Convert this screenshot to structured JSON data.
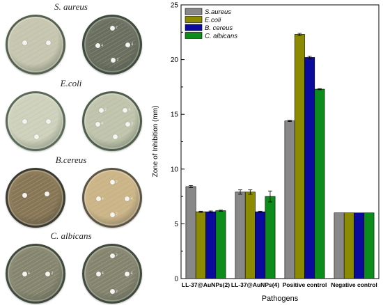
{
  "photos": {
    "rows": [
      {
        "label": "S. aureus",
        "italic": true,
        "plates": [
          {
            "base": "#c8c8b2",
            "rim": "#55604e",
            "dark": false,
            "discs": [
              [
                0.3,
                0.47
              ],
              [
                0.73,
                0.47
              ]
            ],
            "numbers": []
          },
          {
            "base": "#6f7464",
            "rim": "#3e4a3c",
            "dark": true,
            "discs": [
              [
                0.5,
                0.2
              ],
              [
                0.24,
                0.52
              ],
              [
                0.78,
                0.5
              ],
              [
                0.52,
                0.78
              ]
            ],
            "numbers": [
              "2",
              "4",
              "4",
              "2"
            ]
          }
        ]
      },
      {
        "label": "E.coli",
        "italic": true,
        "plates": [
          {
            "base": "#cfd2bc",
            "rim": "#5b6a58",
            "dark": false,
            "discs": [
              [
                0.3,
                0.5
              ],
              [
                0.73,
                0.5
              ],
              [
                0.52,
                0.78
              ]
            ],
            "numbers": []
          },
          {
            "base": "#c2c6ae",
            "rim": "#4f5e4c",
            "dark": false,
            "discs": [
              [
                0.3,
                0.3
              ],
              [
                0.73,
                0.3
              ],
              [
                0.24,
                0.55
              ],
              [
                0.78,
                0.55
              ],
              [
                0.55,
                0.78
              ]
            ],
            "numbers": [
              "2",
              "4",
              "4",
              "2"
            ]
          }
        ]
      },
      {
        "label": "B.cereus",
        "italic": true,
        "plates": [
          {
            "base": "#8e7c5a",
            "rim": "#3a3a30",
            "dark": true,
            "discs": [
              [
                0.3,
                0.46
              ],
              [
                0.7,
                0.43
              ]
            ],
            "numbers": []
          },
          {
            "base": "#cdb78a",
            "rim": "#5b5444",
            "dark": false,
            "discs": [
              [
                0.5,
                0.22
              ],
              [
                0.25,
                0.52
              ],
              [
                0.77,
                0.52
              ],
              [
                0.5,
                0.8
              ]
            ],
            "numbers": [
              "2",
              "4",
              "4",
              "2"
            ]
          }
        ]
      },
      {
        "label": "C. albicans",
        "italic": true,
        "plates": [
          {
            "base": "#8c8b74",
            "rim": "#3f4a3c",
            "dark": true,
            "discs": [
              [
                0.3,
                0.5
              ],
              [
                0.72,
                0.5
              ]
            ],
            "numbers": [
              "4",
              "2"
            ]
          },
          {
            "base": "#8a8a74",
            "rim": "#3f4a3c",
            "dark": true,
            "discs": [
              [
                0.5,
                0.18
              ],
              [
                0.25,
                0.5
              ],
              [
                0.77,
                0.5
              ],
              [
                0.5,
                0.82
              ]
            ],
            "numbers": [
              "2",
              "4",
              "4",
              "2"
            ]
          }
        ]
      }
    ]
  },
  "chart_data": {
    "type": "bar",
    "categories": [
      "LL-37@AuNPs(2)",
      "LL-37@AuNPs(4)",
      "Positive control",
      "Negative control"
    ],
    "series": [
      {
        "name": "S.aureus",
        "italic": true,
        "color": "#888888",
        "values": [
          8.4,
          7.9,
          14.4,
          6.0
        ],
        "errors": [
          0.1,
          0.2,
          0.06,
          0.0
        ]
      },
      {
        "name": "E.coli",
        "italic": true,
        "color": "#8c8a00",
        "values": [
          6.1,
          7.9,
          22.3,
          6.0
        ],
        "errors": [
          0.05,
          0.2,
          0.1,
          0.0
        ]
      },
      {
        "name": "B. cereus",
        "italic": true,
        "color": "#0a0a9c",
        "values": [
          6.1,
          6.1,
          20.2,
          6.0
        ],
        "errors": [
          0.07,
          0.05,
          0.1,
          0.0
        ]
      },
      {
        "name": "C. albicans",
        "italic": true,
        "color": "#0c8c1a",
        "values": [
          6.2,
          7.5,
          17.3,
          6.0
        ],
        "errors": [
          0.05,
          0.5,
          0.05,
          0.0
        ]
      }
    ],
    "xlabel": "Pathogens",
    "ylabel": "Zone of Inhibition (mm)",
    "ylim": [
      0,
      25
    ],
    "yticks": [
      "0",
      "5",
      "10",
      "15",
      "20",
      "25"
    ],
    "legend": "top-left",
    "grid": false
  }
}
